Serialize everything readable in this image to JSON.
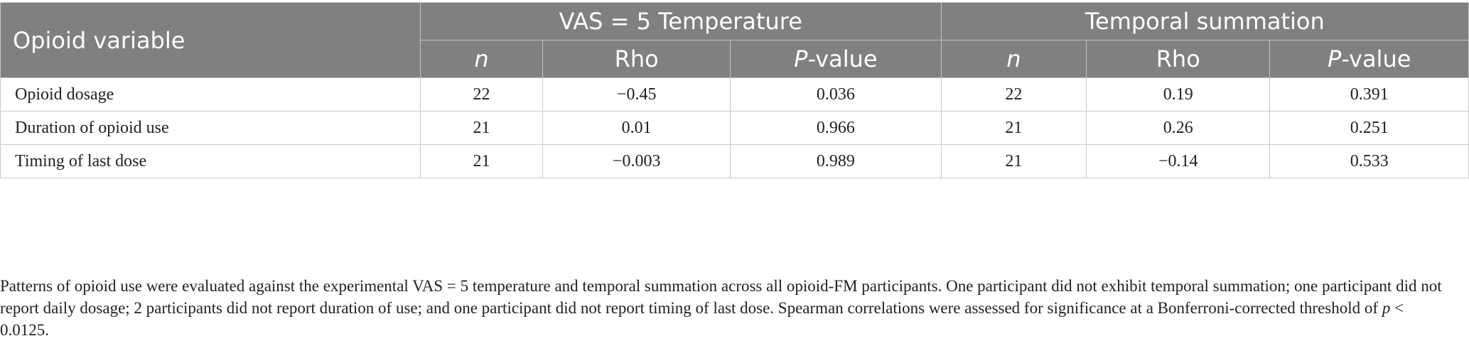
{
  "table": {
    "header": {
      "variable": "Opioid variable",
      "group1": "VAS = 5 Temperature",
      "group2": "Temporal summation",
      "n": "n",
      "rho": "Rho",
      "p_italic": "P",
      "p_rest": "-value"
    },
    "rows": [
      {
        "label": "Opioid dosage",
        "vas_n": "22",
        "vas_rho": "−0.45",
        "vas_p": "0.036",
        "ts_n": "22",
        "ts_rho": "0.19",
        "ts_p": "0.391"
      },
      {
        "label": "Duration of opioid use",
        "vas_n": "21",
        "vas_rho": "0.01",
        "vas_p": "0.966",
        "ts_n": "21",
        "ts_rho": "0.26",
        "ts_p": "0.251"
      },
      {
        "label": "Timing of last dose",
        "vas_n": "21",
        "vas_rho": "−0.003",
        "vas_p": "0.989",
        "ts_n": "21",
        "ts_rho": "−0.14",
        "ts_p": "0.533"
      }
    ]
  },
  "footnote": {
    "text": "Patterns of opioid use were evaluated against the experimental VAS = 5 temperature and temporal summation across all opioid-FM participants. One participant did not exhibit temporal summation; one participant did not report daily dosage; 2 participants did not report duration of use; and one participant did not report timing of last dose. Spearman correlations were assessed for significance at a Bonferroni-corrected threshold of ",
    "p_symbol": "p",
    "threshold": " < 0.0125."
  }
}
